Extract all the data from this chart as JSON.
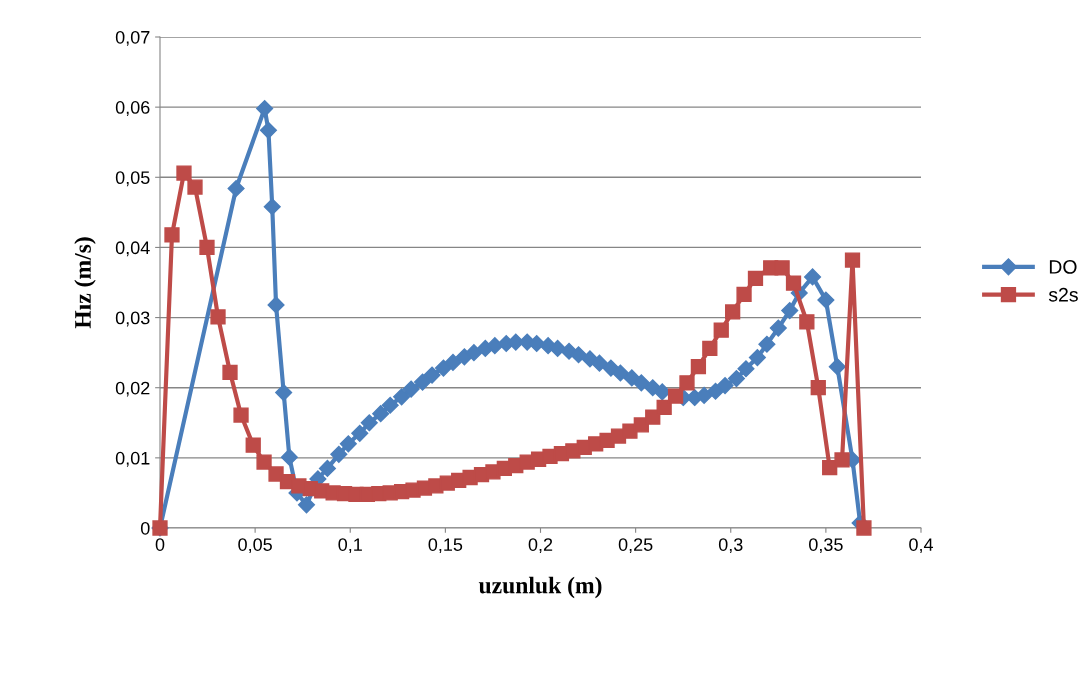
{
  "chart_data": {
    "type": "line",
    "xlabel": "uzunluk (m)",
    "ylabel": "Hız (m/s)",
    "xlim": [
      0,
      0.4
    ],
    "xticks": [
      {
        "value": 0,
        "label": "0"
      },
      {
        "value": 0.05,
        "label": "0,05"
      },
      {
        "value": 0.1,
        "label": "0,1"
      },
      {
        "value": 0.15,
        "label": "0,15"
      },
      {
        "value": 0.2,
        "label": "0,2"
      },
      {
        "value": 0.25,
        "label": "0,25"
      },
      {
        "value": 0.3,
        "label": "0,3"
      },
      {
        "value": 0.35,
        "label": "0,35"
      },
      {
        "value": 0.4,
        "label": "0,4"
      }
    ],
    "ylim": [
      0,
      0.07
    ],
    "yticks": [
      {
        "value": 0,
        "label": "0"
      },
      {
        "value": 0.01,
        "label": "0,01"
      },
      {
        "value": 0.02,
        "label": "0,02"
      },
      {
        "value": 0.03,
        "label": "0,03"
      },
      {
        "value": 0.04,
        "label": "0,04"
      },
      {
        "value": 0.05,
        "label": "0,05"
      },
      {
        "value": 0.06,
        "label": "0,06"
      },
      {
        "value": 0.07,
        "label": "0,07"
      }
    ],
    "grid": "y",
    "legend": "right",
    "line_style": "solid",
    "series": [
      {
        "name": "DO",
        "color": "#4a7ebb",
        "marker": "diamond",
        "x": [
          0,
          0.04,
          0.055,
          0.057,
          0.059,
          0.061,
          0.065,
          0.068,
          0.072,
          0.077,
          0.083,
          0.088,
          0.094,
          0.099,
          0.105,
          0.11,
          0.116,
          0.121,
          0.127,
          0.132,
          0.138,
          0.143,
          0.149,
          0.154,
          0.16,
          0.165,
          0.171,
          0.176,
          0.182,
          0.187,
          0.193,
          0.198,
          0.204,
          0.209,
          0.215,
          0.22,
          0.226,
          0.231,
          0.237,
          0.242,
          0.248,
          0.253,
          0.259,
          0.264,
          0.27,
          0.275,
          0.281,
          0.286,
          0.292,
          0.297,
          0.303,
          0.308,
          0.314,
          0.319,
          0.325,
          0.331,
          0.336,
          0.343,
          0.35,
          0.356,
          0.364,
          0.368
        ],
        "values": [
          0,
          0.0484,
          0.0598,
          0.0567,
          0.0458,
          0.0318,
          0.0193,
          0.0101,
          0.005,
          0.0033,
          0.007,
          0.0085,
          0.0105,
          0.012,
          0.0135,
          0.015,
          0.0163,
          0.0175,
          0.0187,
          0.0198,
          0.0208,
          0.0218,
          0.0228,
          0.0236,
          0.0244,
          0.025,
          0.0256,
          0.026,
          0.0263,
          0.0265,
          0.0265,
          0.0263,
          0.026,
          0.0256,
          0.0252,
          0.0247,
          0.0241,
          0.0235,
          0.0228,
          0.0221,
          0.0214,
          0.0207,
          0.02,
          0.0194,
          null,
          0.0186,
          0.0186,
          0.0189,
          0.0195,
          0.0203,
          0.0213,
          0.0227,
          0.0243,
          0.0262,
          0.0285,
          0.031,
          0.0335,
          0.0358,
          0.0325,
          0.023,
          0.0097,
          0.0007
        ]
      },
      {
        "name": "s2s",
        "color": "#be4b48",
        "marker": "square",
        "x": [
          0,
          0.0063,
          0.0126,
          0.0184,
          0.0247,
          0.0305,
          0.0368,
          0.0426,
          0.049,
          0.0547,
          0.061,
          0.067,
          0.073,
          0.079,
          0.085,
          0.091,
          0.097,
          0.103,
          0.109,
          0.115,
          0.121,
          0.127,
          0.133,
          0.139,
          0.145,
          0.151,
          0.157,
          0.163,
          0.169,
          0.175,
          0.181,
          0.187,
          0.193,
          0.199,
          0.205,
          0.211,
          0.217,
          0.223,
          0.229,
          0.235,
          0.241,
          0.247,
          0.253,
          0.259,
          0.265,
          0.271,
          0.277,
          0.283,
          0.289,
          0.295,
          0.301,
          0.307,
          0.313,
          0.321,
          0.327,
          0.333,
          0.34,
          0.346,
          0.352,
          0.3585,
          0.364,
          0.37
        ],
        "values": [
          0,
          0.0418,
          0.0506,
          0.0486,
          0.04,
          0.0301,
          0.0222,
          0.0161,
          0.0118,
          0.0094,
          0.0077,
          0.0066,
          0.006,
          0.0056,
          0.0053,
          0.005,
          0.0049,
          0.0048,
          0.0048,
          0.0049,
          0.005,
          0.0052,
          0.0054,
          0.0057,
          0.006,
          0.0064,
          0.0068,
          0.0072,
          0.0076,
          0.008,
          0.0085,
          0.0089,
          0.0094,
          0.0098,
          0.0102,
          0.0106,
          0.011,
          0.0115,
          0.012,
          0.0125,
          0.0131,
          0.0138,
          0.0147,
          0.0158,
          0.0172,
          0.0188,
          0.0207,
          0.023,
          0.0256,
          0.0282,
          0.0308,
          0.0333,
          0.0356,
          0.0371,
          0.0371,
          0.0349,
          0.0294,
          0.02,
          0.0086,
          0.0097,
          0.0382,
          0
        ]
      }
    ]
  }
}
